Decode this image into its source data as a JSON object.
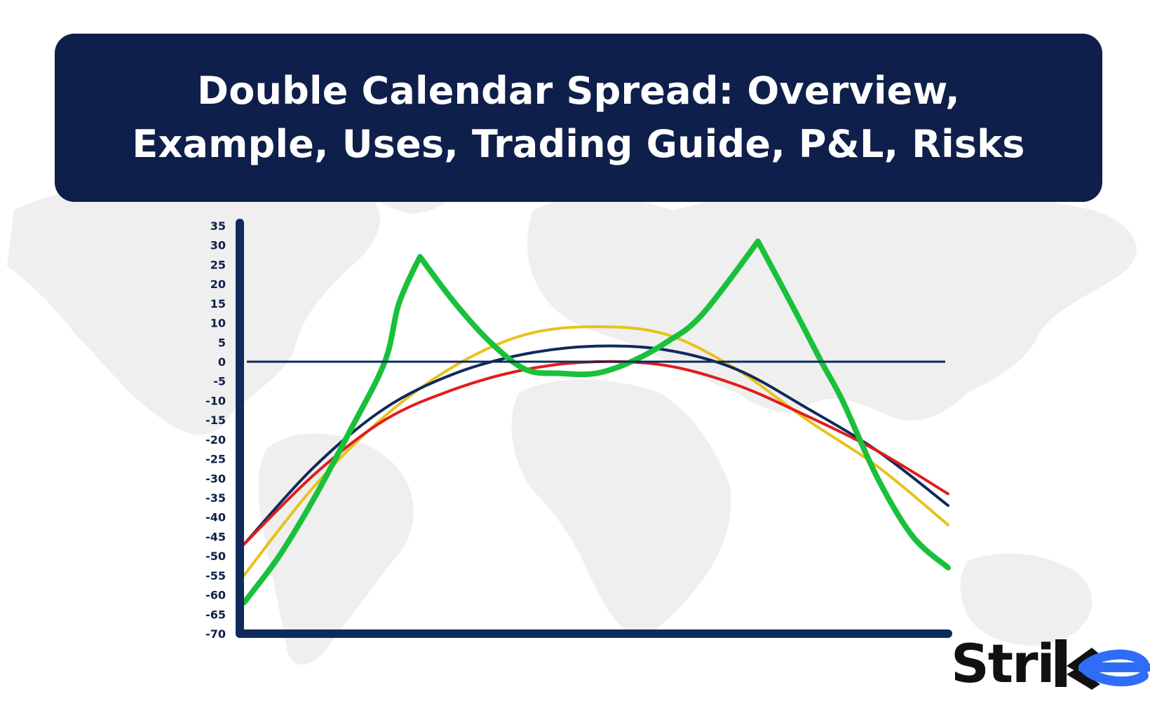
{
  "banner": {
    "title_line1": "Double Calendar Spread: Overview,",
    "title_line2": "Example, Uses, Trading Guide, P&L, Risks"
  },
  "logo": {
    "text": "Stri",
    "mark": "k-arrow-e-icon",
    "accent": "#2f6df6"
  },
  "colors": {
    "banner": "#0f1f4b",
    "axis": "#0f2a5c",
    "map": "#eeeeee"
  },
  "chart_data": {
    "type": "line",
    "title": "",
    "xlabel": "",
    "ylabel": "",
    "ylim": [
      -70,
      35
    ],
    "yticks": [
      35,
      30,
      25,
      20,
      15,
      10,
      5,
      0,
      -5,
      -10,
      -15,
      -20,
      -25,
      -30,
      -35,
      -40,
      -45,
      -50,
      -55,
      -60,
      -65,
      -70
    ],
    "xlim": [
      0,
      100
    ],
    "grid": false,
    "legend": "none",
    "baseline": 0,
    "series": [
      {
        "color": "#e8c21a",
        "x": [
          0,
          10,
          20,
          30,
          40,
          50,
          60,
          70,
          80,
          90,
          100
        ],
        "y": [
          -55,
          -32,
          -14,
          -1,
          7,
          9,
          7,
          -2,
          -15,
          -27,
          -42
        ]
      },
      {
        "color": "#0f2a5c",
        "x": [
          0,
          10,
          20,
          30,
          40,
          50,
          60,
          70,
          80,
          90,
          100
        ],
        "y": [
          -47,
          -27,
          -12,
          -3,
          2,
          4,
          3,
          -2,
          -12,
          -23,
          -37
        ]
      },
      {
        "color": "#e21c1c",
        "x": [
          0,
          10,
          20,
          30,
          40,
          50,
          60,
          70,
          80,
          90,
          100
        ],
        "y": [
          -47,
          -29,
          -15,
          -7,
          -2,
          0,
          -1,
          -6,
          -14,
          -23,
          -34
        ]
      },
      {
        "color": "#19c13a",
        "x": [
          0,
          5,
          10,
          15,
          20,
          22,
          25,
          30,
          35,
          40,
          45,
          50,
          55,
          60,
          65,
          73,
          78,
          82,
          85,
          90,
          95,
          100
        ],
        "y": [
          -62,
          -50,
          -35,
          -18,
          0,
          15,
          27,
          15,
          5,
          -2,
          -3,
          -3,
          0,
          5,
          12,
          31,
          14,
          0,
          -10,
          -30,
          -45,
          -53
        ]
      }
    ]
  }
}
